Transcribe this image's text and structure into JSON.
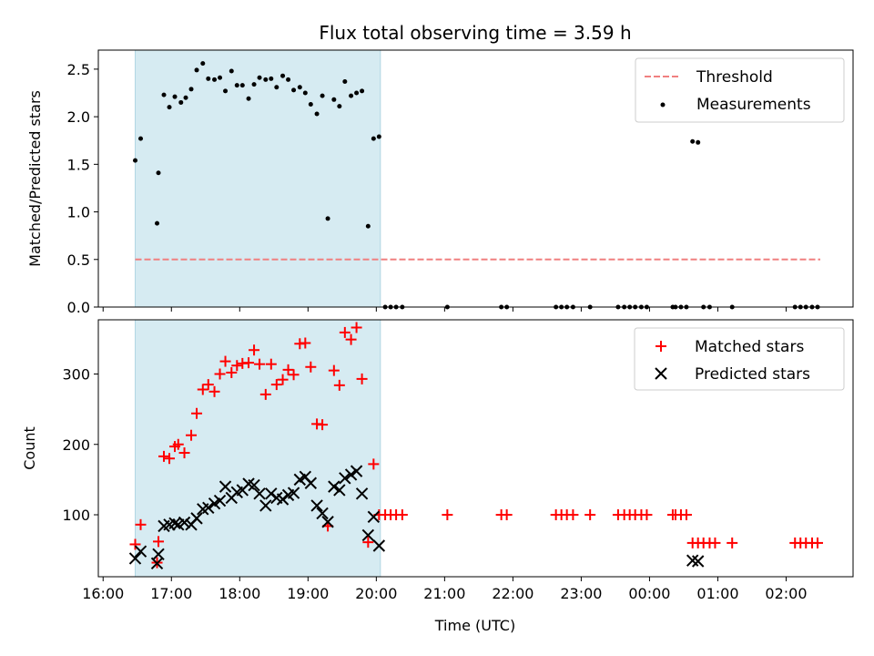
{
  "chart_data": [
    {
      "type": "scatter",
      "title": "Flux total observing time = 3.59 h",
      "xlabel": "",
      "ylabel": "Matched/Predicted stars",
      "xlim": [
        15.93,
        26.98
      ],
      "ylim": [
        0.0,
        2.7
      ],
      "yticks": [
        0.0,
        0.5,
        1.0,
        1.5,
        2.0,
        2.5
      ],
      "ytick_labels": [
        "0.0",
        "0.5",
        "1.0",
        "1.5",
        "2.0",
        "2.5"
      ],
      "shaded_span": [
        16.47,
        20.06
      ],
      "legend": [
        "Threshold",
        "Measurements"
      ],
      "legend_position": "top-right",
      "threshold": {
        "name": "Threshold",
        "value": 0.5,
        "x_range": [
          16.47,
          26.5
        ],
        "color": "#f08080",
        "style": "dashed"
      },
      "measurements": {
        "name": "Measurements",
        "color": "#000000",
        "points": [
          [
            16.47,
            1.54
          ],
          [
            16.55,
            1.77
          ],
          [
            16.79,
            0.88
          ],
          [
            16.81,
            1.41
          ],
          [
            16.89,
            2.23
          ],
          [
            16.97,
            2.1
          ],
          [
            17.05,
            2.21
          ],
          [
            17.14,
            2.15
          ],
          [
            17.21,
            2.2
          ],
          [
            17.29,
            2.29
          ],
          [
            17.37,
            2.49
          ],
          [
            17.46,
            2.56
          ],
          [
            17.54,
            2.4
          ],
          [
            17.63,
            2.39
          ],
          [
            17.71,
            2.41
          ],
          [
            17.79,
            2.27
          ],
          [
            17.88,
            2.48
          ],
          [
            17.96,
            2.33
          ],
          [
            18.04,
            2.33
          ],
          [
            18.13,
            2.19
          ],
          [
            18.21,
            2.34
          ],
          [
            18.29,
            2.41
          ],
          [
            18.38,
            2.39
          ],
          [
            18.46,
            2.4
          ],
          [
            18.54,
            2.31
          ],
          [
            18.63,
            2.43
          ],
          [
            18.71,
            2.39
          ],
          [
            18.79,
            2.28
          ],
          [
            18.88,
            2.31
          ],
          [
            18.96,
            2.25
          ],
          [
            19.04,
            2.13
          ],
          [
            19.13,
            2.03
          ],
          [
            19.21,
            2.22
          ],
          [
            19.29,
            0.93
          ],
          [
            19.38,
            2.18
          ],
          [
            19.46,
            2.11
          ],
          [
            19.54,
            2.37
          ],
          [
            19.63,
            2.22
          ],
          [
            19.71,
            2.25
          ],
          [
            19.79,
            2.27
          ],
          [
            19.88,
            0.85
          ],
          [
            19.96,
            1.77
          ],
          [
            20.04,
            1.79
          ],
          [
            20.13,
            0.0
          ],
          [
            20.21,
            0.0
          ],
          [
            20.29,
            0.0
          ],
          [
            20.38,
            0.0
          ],
          [
            21.04,
            0.0
          ],
          [
            21.83,
            0.0
          ],
          [
            21.91,
            0.0
          ],
          [
            22.63,
            0.0
          ],
          [
            22.71,
            0.0
          ],
          [
            22.79,
            0.0
          ],
          [
            22.88,
            0.0
          ],
          [
            23.13,
            0.0
          ],
          [
            23.54,
            0.0
          ],
          [
            23.63,
            0.0
          ],
          [
            23.71,
            0.0
          ],
          [
            23.79,
            0.0
          ],
          [
            23.88,
            0.0
          ],
          [
            23.96,
            0.0
          ],
          [
            24.34,
            0.0
          ],
          [
            24.38,
            0.0
          ],
          [
            24.46,
            0.0
          ],
          [
            24.54,
            0.0
          ],
          [
            24.63,
            1.74
          ],
          [
            24.71,
            1.73
          ],
          [
            24.79,
            0.0
          ],
          [
            24.88,
            0.0
          ],
          [
            25.21,
            0.0
          ],
          [
            26.13,
            0.0
          ],
          [
            26.21,
            0.0
          ],
          [
            26.29,
            0.0
          ],
          [
            26.38,
            0.0
          ],
          [
            26.46,
            0.0
          ]
        ]
      }
    },
    {
      "type": "scatter",
      "title": "",
      "xlabel": "Time (UTC)",
      "ylabel": "Count",
      "xlim": [
        15.93,
        26.98
      ],
      "ylim": [
        12,
        377
      ],
      "xticks": [
        16,
        17,
        18,
        19,
        20,
        21,
        22,
        23,
        24,
        25,
        26
      ],
      "xtick_labels": [
        "16:00",
        "17:00",
        "18:00",
        "19:00",
        "20:00",
        "21:00",
        "22:00",
        "23:00",
        "00:00",
        "01:00",
        "02:00"
      ],
      "yticks": [
        100,
        200,
        300
      ],
      "ytick_labels": [
        "100",
        "200",
        "300"
      ],
      "shaded_span": [
        16.47,
        20.06
      ],
      "legend": [
        "Matched stars",
        "Predicted stars"
      ],
      "legend_position": "top-right",
      "series": [
        {
          "name": "Matched stars",
          "marker": "plus",
          "color": "#ff0000",
          "points": [
            [
              16.47,
              58
            ],
            [
              16.55,
              86
            ],
            [
              16.79,
              32
            ],
            [
              16.81,
              62
            ],
            [
              16.89,
              183
            ],
            [
              16.97,
              180
            ],
            [
              17.05,
              197
            ],
            [
              17.1,
              200
            ],
            [
              17.19,
              188
            ],
            [
              17.29,
              213
            ],
            [
              17.37,
              244
            ],
            [
              17.46,
              278
            ],
            [
              17.54,
              285
            ],
            [
              17.63,
              275
            ],
            [
              17.71,
              300
            ],
            [
              17.79,
              318
            ],
            [
              17.88,
              302
            ],
            [
              17.96,
              312
            ],
            [
              18.04,
              315
            ],
            [
              18.13,
              316
            ],
            [
              18.21,
              334
            ],
            [
              18.29,
              314
            ],
            [
              18.38,
              271
            ],
            [
              18.46,
              314
            ],
            [
              18.54,
              285
            ],
            [
              18.63,
              292
            ],
            [
              18.71,
              306
            ],
            [
              18.79,
              299
            ],
            [
              18.88,
              343
            ],
            [
              18.96,
              344
            ],
            [
              19.04,
              310
            ],
            [
              19.13,
              229
            ],
            [
              19.21,
              228
            ],
            [
              19.29,
              84
            ],
            [
              19.38,
              305
            ],
            [
              19.46,
              284
            ],
            [
              19.54,
              359
            ],
            [
              19.63,
              349
            ],
            [
              19.71,
              366
            ],
            [
              19.79,
              293
            ],
            [
              19.88,
              61
            ],
            [
              19.96,
              172
            ],
            [
              20.04,
              100
            ],
            [
              20.13,
              100
            ],
            [
              20.21,
              100
            ],
            [
              20.29,
              100
            ],
            [
              20.38,
              100
            ],
            [
              21.04,
              100
            ],
            [
              21.83,
              100
            ],
            [
              21.91,
              100
            ],
            [
              22.63,
              100
            ],
            [
              22.71,
              100
            ],
            [
              22.79,
              100
            ],
            [
              22.88,
              100
            ],
            [
              23.13,
              100
            ],
            [
              23.54,
              100
            ],
            [
              23.63,
              100
            ],
            [
              23.71,
              100
            ],
            [
              23.79,
              100
            ],
            [
              23.88,
              100
            ],
            [
              23.96,
              100
            ],
            [
              24.34,
              100
            ],
            [
              24.38,
              100
            ],
            [
              24.46,
              100
            ],
            [
              24.54,
              100
            ],
            [
              24.63,
              60
            ],
            [
              24.71,
              60
            ],
            [
              24.79,
              60
            ],
            [
              24.88,
              60
            ],
            [
              24.96,
              60
            ],
            [
              25.21,
              60
            ],
            [
              26.13,
              60
            ],
            [
              26.21,
              60
            ],
            [
              26.29,
              60
            ],
            [
              26.38,
              60
            ],
            [
              26.46,
              60
            ]
          ]
        },
        {
          "name": "Predicted stars",
          "marker": "x",
          "color": "#000000",
          "points": [
            [
              16.47,
              38
            ],
            [
              16.55,
              48
            ],
            [
              16.79,
              31
            ],
            [
              16.81,
              44
            ],
            [
              16.89,
              84
            ],
            [
              16.97,
              86
            ],
            [
              17.05,
              88
            ],
            [
              17.1,
              86
            ],
            [
              17.19,
              89
            ],
            [
              17.29,
              86
            ],
            [
              17.37,
              95
            ],
            [
              17.46,
              108
            ],
            [
              17.54,
              110
            ],
            [
              17.63,
              116
            ],
            [
              17.71,
              120
            ],
            [
              17.79,
              140
            ],
            [
              17.88,
              124
            ],
            [
              17.96,
              132
            ],
            [
              18.04,
              135
            ],
            [
              18.13,
              144
            ],
            [
              18.21,
              142
            ],
            [
              18.29,
              130
            ],
            [
              18.38,
              113
            ],
            [
              18.46,
              130
            ],
            [
              18.54,
              124
            ],
            [
              18.63,
              122
            ],
            [
              18.71,
              128
            ],
            [
              18.79,
              131
            ],
            [
              18.88,
              150
            ],
            [
              18.96,
              154
            ],
            [
              19.04,
              145
            ],
            [
              19.13,
              113
            ],
            [
              19.21,
              102
            ],
            [
              19.29,
              90
            ],
            [
              19.38,
              140
            ],
            [
              19.46,
              135
            ],
            [
              19.54,
              152
            ],
            [
              19.63,
              157
            ],
            [
              19.71,
              162
            ],
            [
              19.79,
              130
            ],
            [
              19.88,
              71
            ],
            [
              19.96,
              97
            ],
            [
              20.04,
              56
            ],
            [
              24.63,
              35
            ],
            [
              24.71,
              34
            ]
          ]
        }
      ]
    }
  ]
}
